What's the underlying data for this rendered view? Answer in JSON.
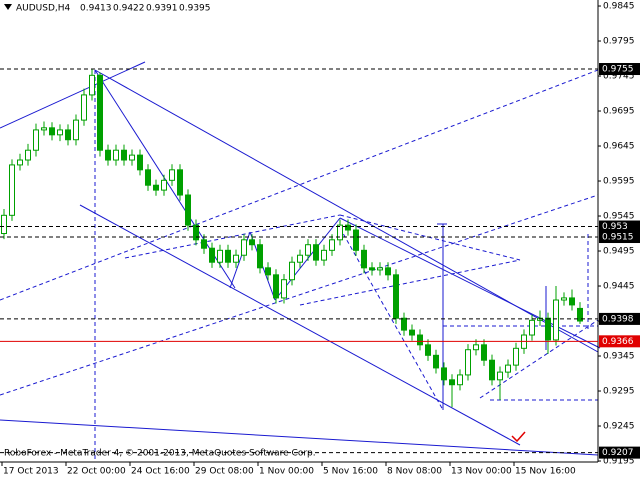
{
  "chart_data": {
    "type": "candlestick",
    "title": "AUDUSD,H4",
    "annotation": "RoboForex - MetaTrader 4, © 2001-2013, MetaQuotes Software Corp.",
    "color": "#00a000",
    "background": "#ffffff",
    "grid": false,
    "open": [
      0.952,
      0.9546,
      0.9618,
      0.9625,
      0.9639,
      0.9668,
      0.9671,
      0.9661,
      0.9668,
      0.9654,
      0.9682,
      0.9718,
      0.9746,
      0.9639,
      0.9625,
      0.9639,
      0.9625,
      0.9632,
      0.9611,
      0.9589,
      0.9582,
      0.9596,
      0.9611,
      0.9575,
      0.9532,
      0.9511,
      0.9499,
      0.9479,
      0.9496,
      0.9479,
      0.9489,
      0.9511,
      0.9504,
      0.9471,
      0.9461,
      0.9428,
      0.9454,
      0.9479,
      0.9489,
      0.9504,
      0.9482,
      0.9496,
      0.9511,
      0.9532,
      0.9525,
      0.9496,
      0.9471,
      0.9468,
      0.9471,
      0.9461,
      0.9399,
      0.9382,
      0.9375,
      0.9361,
      0.9346,
      0.9328,
      0.9311,
      0.9304,
      0.9318,
      0.9354,
      0.9361,
      0.9339,
      0.9311,
      0.9322,
      0.9332,
      0.9356,
      0.9375,
      0.9396,
      0.9399,
      0.9368,
      0.9425,
      0.9428,
      0.9413
    ],
    "high": [
      0.9555,
      0.9626,
      0.9634,
      0.9648,
      0.9677,
      0.968,
      0.9679,
      0.9676,
      0.9676,
      0.969,
      0.9727,
      0.9755,
      0.975,
      0.9647,
      0.9647,
      0.9647,
      0.964,
      0.964,
      0.9619,
      0.9597,
      0.9604,
      0.9619,
      0.9619,
      0.9583,
      0.954,
      0.9519,
      0.9507,
      0.9504,
      0.9504,
      0.9497,
      0.9519,
      0.9519,
      0.9512,
      0.9479,
      0.9469,
      0.9462,
      0.9487,
      0.9497,
      0.9512,
      0.9512,
      0.9504,
      0.9519,
      0.954,
      0.954,
      0.9533,
      0.9504,
      0.9479,
      0.9479,
      0.9479,
      0.9469,
      0.9407,
      0.939,
      0.9383,
      0.9369,
      0.9354,
      0.9336,
      0.9319,
      0.9326,
      0.9362,
      0.9369,
      0.9369,
      0.9347,
      0.933,
      0.934,
      0.9364,
      0.9383,
      0.9404,
      0.941,
      0.9407,
      0.9445,
      0.9436,
      0.944,
      0.9422
    ],
    "low": [
      0.9512,
      0.9538,
      0.961,
      0.9617,
      0.963,
      0.966,
      0.9653,
      0.9652,
      0.9646,
      0.9646,
      0.9674,
      0.971,
      0.963,
      0.9617,
      0.9617,
      0.9617,
      0.9617,
      0.9603,
      0.9581,
      0.9574,
      0.9574,
      0.9588,
      0.9567,
      0.9524,
      0.9503,
      0.9491,
      0.9471,
      0.9471,
      0.9471,
      0.9471,
      0.9481,
      0.9496,
      0.9463,
      0.9453,
      0.942,
      0.942,
      0.9446,
      0.9471,
      0.9481,
      0.9474,
      0.9474,
      0.9488,
      0.9503,
      0.9517,
      0.9488,
      0.9463,
      0.946,
      0.946,
      0.9453,
      0.9391,
      0.9374,
      0.9367,
      0.9353,
      0.9338,
      0.932,
      0.9303,
      0.9272,
      0.9296,
      0.931,
      0.9346,
      0.9331,
      0.9303,
      0.9282,
      0.9314,
      0.9324,
      0.9348,
      0.9367,
      0.9388,
      0.9348,
      0.936,
      0.9417,
      0.941,
      0.9391
    ],
    "close": [
      0.9546,
      0.9618,
      0.9625,
      0.9639,
      0.9668,
      0.9671,
      0.9661,
      0.9668,
      0.9654,
      0.9682,
      0.9718,
      0.9746,
      0.9639,
      0.9625,
      0.9639,
      0.9625,
      0.9632,
      0.9611,
      0.9589,
      0.9582,
      0.9596,
      0.9611,
      0.9575,
      0.9532,
      0.9511,
      0.9499,
      0.9479,
      0.9496,
      0.9479,
      0.9489,
      0.9511,
      0.9504,
      0.9471,
      0.9461,
      0.9428,
      0.9454,
      0.9479,
      0.9489,
      0.9504,
      0.9482,
      0.9496,
      0.9511,
      0.9532,
      0.9525,
      0.9496,
      0.9471,
      0.9468,
      0.9471,
      0.9461,
      0.9399,
      0.9382,
      0.9375,
      0.9361,
      0.9346,
      0.9328,
      0.9311,
      0.9304,
      0.9318,
      0.9354,
      0.9361,
      0.9339,
      0.9311,
      0.9322,
      0.9332,
      0.9356,
      0.9375,
      0.9396,
      0.9399,
      0.9368,
      0.9425,
      0.9428,
      0.9418,
      0.9395
    ],
    "ylim": [
      0.91936,
      0.98536
    ],
    "yticks": [
      0.9845,
      0.9795,
      0.9745,
      0.9695,
      0.9645,
      0.9595,
      0.9545,
      0.9495,
      0.9445,
      0.9395,
      0.9345,
      0.9295,
      0.9245,
      0.9195
    ],
    "xticks": [
      {
        "value": 0,
        "label": "17 Oct 2013"
      },
      {
        "value": 8,
        "label": "22 Oct 00:00"
      },
      {
        "value": 16,
        "label": "24 Oct 16:00"
      },
      {
        "value": 24,
        "label": "29 Oct 08:00"
      },
      {
        "value": 32,
        "label": "1 Nov 00:00"
      },
      {
        "value": 40,
        "label": "5 Nov 16:00"
      },
      {
        "value": 48,
        "label": "8 Nov 08:00"
      },
      {
        "value": 56,
        "label": "13 Nov 00:00"
      },
      {
        "value": 64,
        "label": "15 Nov 16:00"
      }
    ],
    "levels": [
      {
        "value": 0.9755,
        "color": "#000000",
        "style": "dashed"
      },
      {
        "value": 0.953,
        "color": "#000000",
        "style": "dashed"
      },
      {
        "value": 0.9515,
        "color": "#000000",
        "style": "dashed"
      },
      {
        "value": 0.9398,
        "color": "#000000",
        "style": "dashed"
      },
      {
        "value": 0.9366,
        "color": "#e00000",
        "style": "solid"
      },
      {
        "value": 0.9207,
        "color": "#000000",
        "style": "dashed"
      }
    ]
  }
}
